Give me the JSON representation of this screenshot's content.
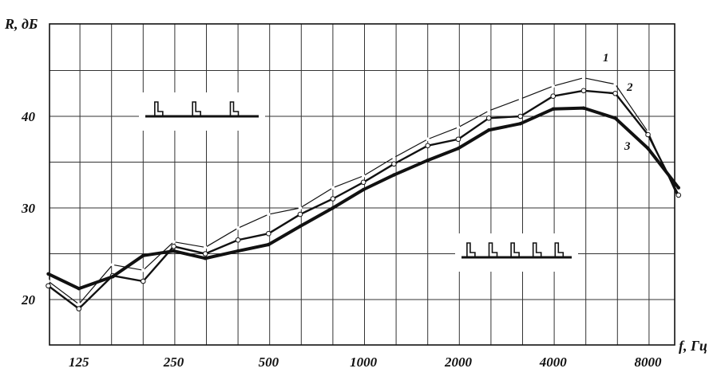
{
  "chart_data": {
    "type": "line",
    "xlabel": "f, Гц",
    "ylabel": "R, дБ",
    "x_scale": "log",
    "grid": true,
    "x_ticks": [
      "125",
      "250",
      "500",
      "1000",
      "2000",
      "4000",
      "8000"
    ],
    "x_tick_values": [
      125,
      250,
      500,
      1000,
      2000,
      4000,
      8000
    ],
    "y_ticks": [
      "20",
      "30",
      "40"
    ],
    "y_tick_values": [
      20,
      30,
      40
    ],
    "ylim": [
      19,
      45
    ],
    "x": [
      100,
      125,
      160,
      200,
      250,
      315,
      400,
      500,
      630,
      800,
      1000,
      1250,
      1600,
      2000,
      2500,
      3150,
      4000,
      5000,
      6300,
      8000,
      10000
    ],
    "series": [
      {
        "name": "1",
        "values": [
          22.0,
          19.5,
          23.8,
          23.2,
          26.3,
          25.7,
          27.8,
          29.3,
          30.0,
          32.2,
          33.5,
          35.5,
          37.5,
          38.8,
          40.6,
          41.9,
          43.3,
          44.2,
          43.5,
          38.3,
          31.0
        ]
      },
      {
        "name": "2",
        "values": [
          21.5,
          19.0,
          22.6,
          22.0,
          25.8,
          25.0,
          26.5,
          27.2,
          29.3,
          31.0,
          32.8,
          34.8,
          36.8,
          37.5,
          39.8,
          40.0,
          42.2,
          42.8,
          42.5,
          38.0,
          31.4
        ]
      },
      {
        "name": "3",
        "values": [
          22.8,
          21.2,
          22.5,
          24.8,
          25.3,
          24.5,
          25.3,
          26.0,
          28.0,
          30.0,
          32.0,
          33.6,
          35.2,
          36.5,
          38.5,
          39.2,
          40.8,
          40.9,
          39.8,
          36.5,
          32.2
        ]
      }
    ],
    "curve_labels": [
      "1",
      "2",
      "3"
    ]
  }
}
